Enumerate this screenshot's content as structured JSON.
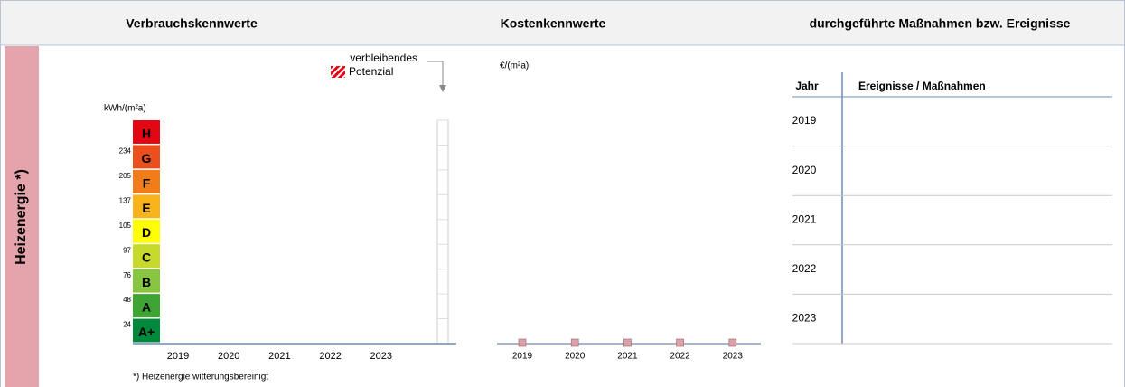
{
  "header": {
    "consumption_title": "Verbrauchskennwerte",
    "cost_title": "Kostenkennwerte",
    "events_title": "durchgeführte Maßnahmen bzw. Ereignisse"
  },
  "side_label": "Heizenergie *)",
  "consumption": {
    "unit": "kWh/(m²a)",
    "legend": [
      "verbleibendes",
      "Potenzial"
    ],
    "classes": [
      {
        "label": "H",
        "color": "#e30613"
      },
      {
        "label": "G",
        "threshold": 234,
        "color": "#ea4f1c"
      },
      {
        "label": "F",
        "threshold": 205,
        "color": "#f07d1a"
      },
      {
        "label": "E",
        "threshold": 137,
        "color": "#f9b31b"
      },
      {
        "label": "D",
        "threshold": 105,
        "color": "#ffff00"
      },
      {
        "label": "C",
        "threshold": 97,
        "color": "#c6d92c"
      },
      {
        "label": "B",
        "threshold": 76,
        "color": "#88c540"
      },
      {
        "label": "A",
        "threshold": 48,
        "color": "#3ea535"
      },
      {
        "label": "A+",
        "threshold": 24,
        "color": "#00883c"
      }
    ],
    "years": [
      "2019",
      "2020",
      "2021",
      "2022",
      "2023"
    ],
    "footnote": "*) Heizenergie witterungsbereinigt"
  },
  "cost": {
    "unit": "€/(m²a)",
    "years": [
      "2019",
      "2020",
      "2021",
      "2022",
      "2023"
    ],
    "values": [
      0,
      0,
      0,
      0,
      0
    ],
    "color": "#dba3a9"
  },
  "events_table": {
    "columns": [
      "Jahr",
      "Ereignisse / Maßnahmen"
    ],
    "rows": [
      "2019",
      "2020",
      "2021",
      "2022",
      "2023"
    ]
  }
}
